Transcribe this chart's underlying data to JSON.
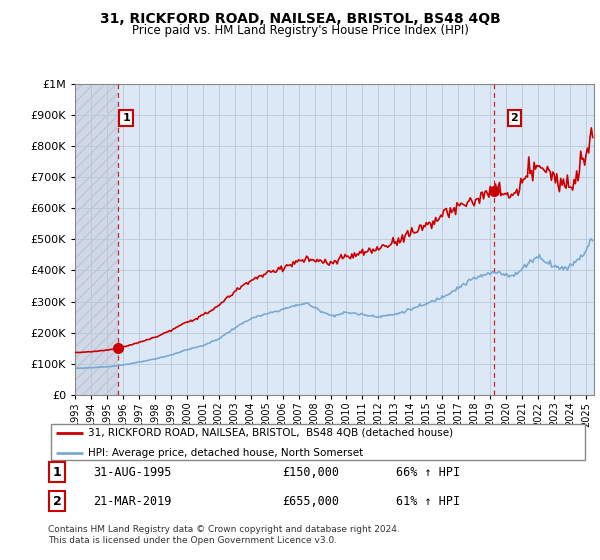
{
  "title": "31, RICKFORD ROAD, NAILSEA, BRISTOL, BS48 4QB",
  "subtitle": "Price paid vs. HM Land Registry's House Price Index (HPI)",
  "legend_property": "31, RICKFORD ROAD, NAILSEA, BRISTOL,  BS48 4QB (detached house)",
  "legend_hpi": "HPI: Average price, detached house, North Somerset",
  "sale1_date": "31-AUG-1995",
  "sale1_price": 150000,
  "sale1_pct": "66% ↑ HPI",
  "sale2_date": "21-MAR-2019",
  "sale2_price": 655000,
  "sale2_pct": "61% ↑ HPI",
  "footnote": "Contains HM Land Registry data © Crown copyright and database right 2024.\nThis data is licensed under the Open Government Licence v3.0.",
  "property_color": "#cc0000",
  "hpi_color": "#7aaacf",
  "bg_plain": "#dce8f5",
  "bg_hatch": "#d0d8e8",
  "grid_color": "#b8c8d8",
  "vline_color": "#cc0000",
  "ylim": [
    0,
    1000000
  ],
  "yticks": [
    0,
    100000,
    200000,
    300000,
    400000,
    500000,
    600000,
    700000,
    800000,
    900000,
    1000000
  ],
  "xmin": 1993.0,
  "xmax": 2025.5,
  "sale1_year": 1995.67,
  "sale2_year": 2019.22
}
